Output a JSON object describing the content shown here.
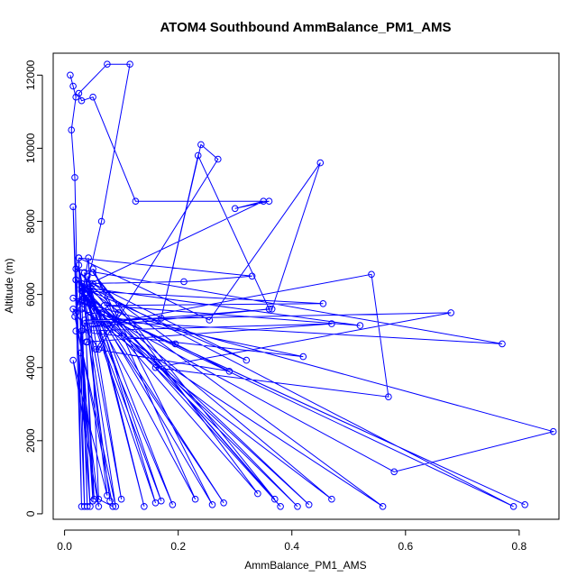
{
  "chart_data": {
    "type": "line",
    "title": "ATOM4 Southbound AmmBalance_PM1_AMS",
    "xlabel": "AmmBalance_PM1_AMS",
    "ylabel": "Altitude (m)",
    "xlim": [
      -0.02,
      0.87
    ],
    "ylim": [
      -150,
      12600
    ],
    "xticks": [
      0.0,
      0.2,
      0.4,
      0.6,
      0.8
    ],
    "xtick_labels": [
      "0.0",
      "0.2",
      "0.4",
      "0.6",
      "0.8"
    ],
    "yticks": [
      0,
      2000,
      4000,
      6000,
      8000,
      10000,
      12000
    ],
    "ytick_labels": [
      "0",
      "2000",
      "4000",
      "6000",
      "8000",
      "10000",
      "12000"
    ],
    "grid": false,
    "legend": "none",
    "markers": "open-circle",
    "color": "#0000ff",
    "series": [
      {
        "x": [
          0.01,
          0.015,
          0.02,
          0.012,
          0.018,
          0.03,
          0.015,
          0.035,
          0.025,
          0.04,
          0.03,
          0.02,
          0.045,
          0.03,
          0.05,
          0.038,
          0.052,
          0.028,
          0.06,
          0.015,
          0.075,
          0.032,
          0.042,
          0.06,
          0.085,
          0.018,
          0.09,
          0.03,
          0.08,
          0.025,
          0.1,
          0.035,
          0.14,
          0.04,
          0.16,
          0.03,
          0.17,
          0.045,
          0.19,
          0.035,
          0.23,
          0.05,
          0.26,
          0.03,
          0.28,
          0.04,
          0.34,
          0.05,
          0.37,
          0.045,
          0.38,
          0.02,
          0.41,
          0.035,
          0.43,
          0.04,
          0.47,
          0.03,
          0.56,
          0.02,
          0.79,
          0.03,
          0.81,
          0.015,
          0.58,
          0.86,
          0.025,
          0.04,
          0.065,
          0.115,
          0.075,
          0.025,
          0.03,
          0.05,
          0.125,
          0.36,
          0.3,
          0.35,
          0.045,
          0.21,
          0.33,
          0.025,
          0.255,
          0.45,
          0.365,
          0.035,
          0.04,
          0.47,
          0.02,
          0.42,
          0.015,
          0.06,
          0.27,
          0.24,
          0.17,
          0.235,
          0.36,
          0.04,
          0.54,
          0.57,
          0.16,
          0.68,
          0.035,
          0.77,
          0.02,
          0.095,
          0.055,
          0.29,
          0.195,
          0.05,
          0.32,
          0.03,
          0.52,
          0.07,
          0.455,
          0.03,
          0.065
        ],
        "y": [
          12000,
          11700,
          11400,
          10500,
          9200,
          200,
          8400,
          200,
          7000,
          200,
          6200,
          5500,
          200,
          5000,
          350,
          4700,
          400,
          4400,
          200,
          4200,
          500,
          6100,
          7000,
          400,
          200,
          5400,
          200,
          6300,
          350,
          6800,
          400,
          6600,
          200,
          6500,
          300,
          6200,
          350,
          6100,
          250,
          6000,
          400,
          6700,
          250,
          6300,
          300,
          5900,
          550,
          6600,
          400,
          6200,
          200,
          6400,
          200,
          5900,
          250,
          6000,
          400,
          5600,
          200,
          6400,
          200,
          5800,
          250,
          5900,
          1150,
          2250,
          5800,
          6300,
          8000,
          12300,
          12300,
          11500,
          11300,
          11400,
          8550,
          8550,
          8350,
          8550,
          6300,
          6350,
          6500,
          7000,
          5300,
          9600,
          5600,
          5200,
          4700,
          5200,
          5000,
          4300,
          5600,
          4500,
          9700,
          10100,
          5350,
          9800,
          5600,
          5100,
          6550,
          3200,
          4000,
          5500,
          5300,
          4650,
          6700,
          5500,
          4500,
          3900,
          4650,
          6300,
          4200,
          6200,
          5150,
          5700,
          5750,
          6100,
          5500
        ]
      }
    ]
  }
}
